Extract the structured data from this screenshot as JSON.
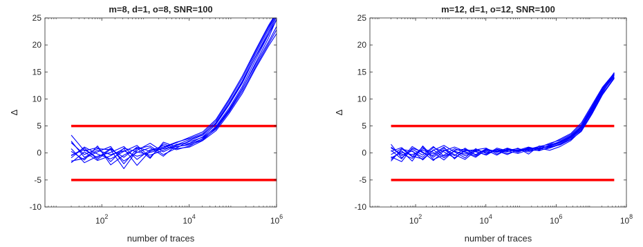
{
  "chart_data": [
    {
      "type": "line",
      "title": "m=8, d=1, o=8, SNR=100",
      "xlabel": "number of traces",
      "ylabel": "Δ",
      "xscale": "log",
      "xlim": [
        5,
        1000000
      ],
      "ylim": [
        -10,
        25
      ],
      "yticks": [
        -10,
        -5,
        0,
        5,
        10,
        15,
        20,
        25
      ],
      "ytick_labels": [
        "-10",
        "-5",
        "0",
        "5",
        "10",
        "15",
        "20",
        "25"
      ],
      "xticks": [
        {
          "base": "10",
          "exp": "2",
          "value": 100
        },
        {
          "base": "10",
          "exp": "4",
          "value": 10000
        },
        {
          "base": "10",
          "exp": "6",
          "value": 1000000
        }
      ],
      "series_color": "#0000ff",
      "threshold_color": "#ff0000",
      "thresholds": [
        5,
        -5
      ],
      "threshold_xrange": [
        20,
        1000000
      ],
      "grid": false,
      "x": [
        20,
        40,
        80,
        160,
        320,
        640,
        1280,
        2560,
        5120,
        10240,
        20480,
        40960,
        81920,
        163840,
        327680,
        655360,
        1000000
      ],
      "series": [
        {
          "values": [
            2.2,
            -0.8,
            0.5,
            -0.3,
            0.4,
            -0.6,
            0.1,
            0.8,
            1.2,
            1.5,
            2.4,
            4.6,
            7.8,
            11.8,
            16.6,
            21.3,
            24.8
          ]
        },
        {
          "values": [
            -0.5,
            0.9,
            -1.2,
            0.7,
            -0.8,
            1.1,
            0.3,
            1.4,
            0.6,
            1.3,
            2.7,
            4.9,
            8.3,
            12.3,
            17.2,
            21.9,
            25.3
          ]
        },
        {
          "values": [
            3.3,
            0.4,
            1.0,
            -1.6,
            0.9,
            0.2,
            -0.4,
            0.5,
            1.6,
            1.8,
            3.0,
            5.3,
            8.9,
            12.9,
            17.8,
            22.4,
            25.7
          ]
        },
        {
          "values": [
            -1.5,
            -1.0,
            0.2,
            1.2,
            -2.0,
            0.8,
            1.3,
            -0.3,
            0.9,
            2.3,
            3.3,
            5.6,
            9.3,
            13.3,
            18.3,
            22.9,
            26.0
          ]
        },
        {
          "values": [
            0.8,
            -1.8,
            -0.6,
            0.1,
            1.2,
            -1.2,
            0.6,
            1.1,
            2.0,
            2.7,
            3.6,
            5.9,
            9.7,
            13.8,
            18.7,
            23.3,
            25.9
          ]
        },
        {
          "values": [
            -0.9,
            1.1,
            -0.2,
            -1.1,
            0.3,
            1.4,
            -0.8,
            1.7,
            0.8,
            1.1,
            2.3,
            4.1,
            7.3,
            11.0,
            15.6,
            19.8,
            22.1
          ]
        },
        {
          "values": [
            1.9,
            -0.3,
            0.8,
            0.6,
            -2.9,
            0.5,
            1.8,
            0.2,
            1.4,
            2.1,
            2.9,
            4.7,
            8.0,
            11.9,
            16.3,
            20.6,
            23.4
          ]
        },
        {
          "values": [
            -1.8,
            0.2,
            -1.4,
            -0.5,
            0.8,
            -2.3,
            0.4,
            0.9,
            1.9,
            2.9,
            3.9,
            6.2,
            10.0,
            14.2,
            19.0,
            23.6,
            26.0
          ]
        },
        {
          "values": [
            0.3,
            -1.3,
            1.3,
            -2.2,
            -0.4,
            0.9,
            -1.0,
            2.0,
            1.1,
            1.7,
            2.6,
            4.4,
            7.6,
            11.4,
            15.9,
            20.2,
            22.8
          ]
        },
        {
          "values": [
            -0.4,
            0.6,
            -0.9,
            0.9,
            -1.5,
            0.1,
            1.0,
            -0.6,
            1.5,
            2.5,
            3.4,
            5.5,
            9.0,
            13.1,
            17.7,
            22.0,
            24.6
          ]
        }
      ]
    },
    {
      "type": "line",
      "title": "m=12, d=1, o=12, SNR=100",
      "xlabel": "number of traces",
      "ylabel": "Δ",
      "xscale": "log",
      "xlim": [
        5,
        100000000
      ],
      "ylim": [
        -10,
        25
      ],
      "yticks": [
        -10,
        -5,
        0,
        5,
        10,
        15,
        20,
        25
      ],
      "ytick_labels": [
        "-10",
        "-5",
        "0",
        "5",
        "10",
        "15",
        "20",
        "25"
      ],
      "xticks": [
        {
          "base": "10",
          "exp": "2",
          "value": 100
        },
        {
          "base": "10",
          "exp": "4",
          "value": 10000
        },
        {
          "base": "10",
          "exp": "6",
          "value": 1000000
        },
        {
          "base": "10",
          "exp": "8",
          "value": 100000000
        }
      ],
      "series_color": "#0000ff",
      "threshold_color": "#ff0000",
      "thresholds": [
        5,
        -5
      ],
      "threshold_xrange": [
        20,
        45000000
      ],
      "grid": false,
      "x": [
        20,
        40,
        80,
        160,
        320,
        640,
        1280,
        2560,
        5120,
        10240,
        20480,
        40960,
        81920,
        163840,
        327680,
        655360,
        1310720,
        2621440,
        5242880,
        10485760,
        20971520,
        45000000
      ],
      "series": [
        {
          "values": [
            1.6,
            -0.9,
            0.7,
            -0.4,
            1.2,
            -0.6,
            0.3,
            -0.2,
            0.5,
            0.1,
            0.4,
            -0.3,
            0.6,
            0.2,
            0.9,
            0.5,
            1.2,
            2.3,
            4.2,
            7.5,
            11.2,
            14.6
          ]
        },
        {
          "values": [
            -1.2,
            0.4,
            -1.5,
            1.3,
            -0.8,
            0.6,
            -0.5,
            0.9,
            -0.4,
            0.7,
            0.3,
            0.8,
            0.1,
            1.0,
            0.7,
            1.4,
            2.0,
            3.1,
            4.9,
            8.2,
            11.7,
            14.9
          ]
        },
        {
          "values": [
            0.3,
            1.0,
            -0.6,
            -1.1,
            0.5,
            1.4,
            0.2,
            -0.9,
            0.8,
            -0.1,
            0.6,
            0.2,
            0.9,
            -0.2,
            1.3,
            1.0,
            1.7,
            2.8,
            4.5,
            7.9,
            11.4,
            14.2
          ]
        },
        {
          "values": [
            -0.7,
            -1.6,
            0.9,
            0.2,
            -1.4,
            0.4,
            1.1,
            0.3,
            -0.6,
            0.5,
            -0.4,
            0.7,
            0.3,
            0.8,
            0.4,
            1.1,
            1.5,
            2.5,
            4.0,
            7.2,
            10.8,
            13.8
          ]
        },
        {
          "values": [
            0.9,
            -0.2,
            -1.0,
            0.8,
            0.1,
            -1.3,
            0.5,
            0.7,
            0.2,
            -0.3,
            0.9,
            0.4,
            -0.1,
            0.6,
            1.0,
            1.8,
            2.4,
            3.4,
            5.3,
            8.6,
            12.0,
            14.7
          ]
        },
        {
          "values": [
            -1.5,
            0.7,
            0.3,
            -0.8,
            1.0,
            0.2,
            -0.9,
            0.4,
            0.6,
            0.9,
            -0.2,
            0.5,
            0.8,
            0.4,
            0.8,
            1.2,
            1.9,
            2.9,
            4.7,
            7.7,
            11.0,
            13.9
          ]
        },
        {
          "values": [
            0.5,
            -1.1,
            1.2,
            0.0,
            -0.5,
            0.9,
            -0.3,
            -1.2,
            0.4,
            0.3,
            0.6,
            -0.1,
            0.5,
            1.1,
            0.6,
            1.5,
            2.1,
            3.0,
            4.8,
            8.0,
            11.5,
            14.4
          ]
        },
        {
          "values": [
            -0.3,
            0.8,
            -0.7,
            1.1,
            -1.2,
            -0.4,
            0.8,
            0.1,
            -0.8,
            0.6,
            0.2,
            0.9,
            0.3,
            0.7,
            1.2,
            1.6,
            2.6,
            3.6,
            5.6,
            8.9,
            12.2,
            14.8
          ]
        },
        {
          "values": [
            1.1,
            -0.5,
            0.4,
            -1.3,
            0.6,
            -0.9,
            0.4,
            -0.5,
            0.3,
            -0.4,
            0.7,
            0.3,
            0.6,
            0.5,
            0.5,
            0.9,
            1.6,
            2.6,
            4.4,
            7.4,
            10.9,
            14.0
          ]
        },
        {
          "values": [
            -0.9,
            0.1,
            -0.3,
            0.5,
            -0.2,
            1.1,
            -1.1,
            0.6,
            -0.3,
            0.8,
            0.1,
            0.6,
            0.4,
            0.9,
            0.9,
            1.3,
            2.2,
            3.2,
            5.0,
            8.4,
            11.8,
            14.5
          ]
        }
      ]
    }
  ]
}
